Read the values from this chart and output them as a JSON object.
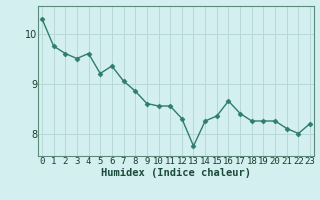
{
  "x": [
    0,
    1,
    2,
    3,
    4,
    5,
    6,
    7,
    8,
    9,
    10,
    11,
    12,
    13,
    14,
    15,
    16,
    17,
    18,
    19,
    20,
    21,
    22,
    23
  ],
  "y": [
    10.3,
    9.75,
    9.6,
    9.5,
    9.6,
    9.2,
    9.35,
    9.05,
    8.85,
    8.6,
    8.55,
    8.55,
    8.3,
    7.75,
    8.25,
    8.35,
    8.65,
    8.4,
    8.25,
    8.25,
    8.25,
    8.1,
    8.0,
    8.2
  ],
  "line_color": "#2e7d6e",
  "marker": "D",
  "marker_size": 2.5,
  "bg_color": "#d4efef",
  "grid_color": "#b8d8d8",
  "xlabel": "Humidex (Indice chaleur)",
  "xlabel_fontsize": 7.5,
  "yticks": [
    8,
    9,
    10
  ],
  "xticks": [
    0,
    1,
    2,
    3,
    4,
    5,
    6,
    7,
    8,
    9,
    10,
    11,
    12,
    13,
    14,
    15,
    16,
    17,
    18,
    19,
    20,
    21,
    22,
    23
  ],
  "xlim": [
    -0.3,
    23.3
  ],
  "ylim": [
    7.55,
    10.55
  ],
  "axis_color": "#5a8a7a",
  "tick_fontsize": 6.5,
  "linewidth": 1.0
}
